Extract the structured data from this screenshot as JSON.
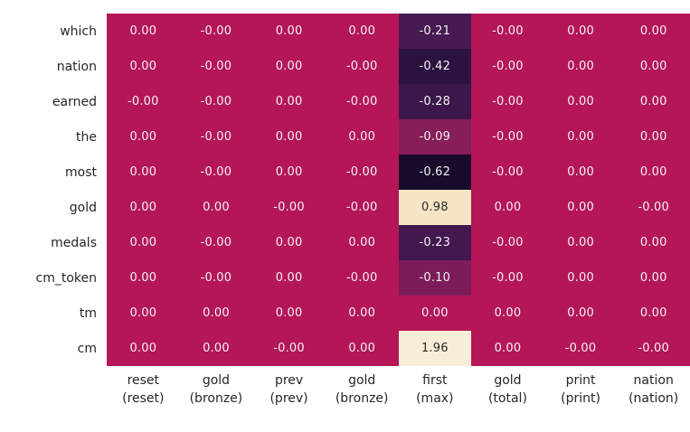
{
  "chart_data": {
    "type": "heatmap",
    "title": "",
    "xlabel": "",
    "ylabel": "",
    "legend": "none",
    "grid": false,
    "rows": [
      "which",
      "nation",
      "earned",
      "the",
      "most",
      "gold",
      "medals",
      "cm_token",
      "tm",
      "cm"
    ],
    "columns_line1": [
      "reset",
      "gold",
      "prev",
      "gold",
      "first",
      "gold",
      "print",
      "nation"
    ],
    "columns_line2": [
      "(reset)",
      "(bronze)",
      "(prev)",
      "(bronze)",
      "(max)",
      "(total)",
      "(print)",
      "(nation)"
    ],
    "values": [
      [
        "0.00",
        "-0.00",
        "0.00",
        "0.00",
        "-0.21",
        "-0.00",
        "0.00",
        "0.00"
      ],
      [
        "0.00",
        "-0.00",
        "0.00",
        "-0.00",
        "-0.42",
        "-0.00",
        "0.00",
        "0.00"
      ],
      [
        "-0.00",
        "-0.00",
        "0.00",
        "-0.00",
        "-0.28",
        "-0.00",
        "0.00",
        "0.00"
      ],
      [
        "0.00",
        "-0.00",
        "0.00",
        "0.00",
        "-0.09",
        "-0.00",
        "0.00",
        "0.00"
      ],
      [
        "0.00",
        "-0.00",
        "0.00",
        "-0.00",
        "-0.62",
        "-0.00",
        "0.00",
        "0.00"
      ],
      [
        "0.00",
        "0.00",
        "-0.00",
        "-0.00",
        "0.98",
        "0.00",
        "0.00",
        "-0.00"
      ],
      [
        "0.00",
        "-0.00",
        "0.00",
        "0.00",
        "-0.23",
        "-0.00",
        "0.00",
        "0.00"
      ],
      [
        "0.00",
        "-0.00",
        "0.00",
        "-0.00",
        "-0.10",
        "-0.00",
        "0.00",
        "0.00"
      ],
      [
        "0.00",
        "0.00",
        "0.00",
        "0.00",
        "0.00",
        "0.00",
        "0.00",
        "0.00"
      ],
      [
        "0.00",
        "0.00",
        "-0.00",
        "0.00",
        "1.96",
        "0.00",
        "-0.00",
        "-0.00"
      ]
    ],
    "value_range": [
      -0.62,
      1.96
    ],
    "cell_colors": {
      "default": "#b41658",
      "-0.21": "#471a53",
      "-0.42": "#2c1240",
      "-0.28": "#3c174b",
      "-0.09": "#871d59",
      "-0.62": "#190b2c",
      "0.98": "#f5e5c4",
      "-0.23": "#42184f",
      "-0.10": "#7c1d59",
      "1.96": "#f8edd6"
    },
    "light_cells": [
      "0.98",
      "1.96"
    ],
    "text_light": "#f2f2f2",
    "text_dark": "#2a2a2a",
    "label_color": "#262626",
    "background": "#ffffff"
  }
}
